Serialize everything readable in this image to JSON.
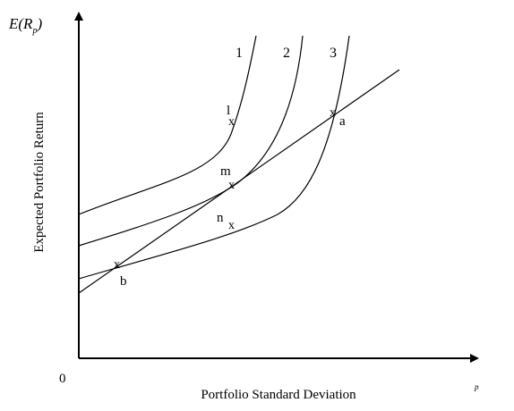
{
  "axes": {
    "y_label": "Expected Portfolio Return",
    "y_symbol_main": "E(R",
    "y_symbol_sub": "p",
    "y_symbol_close": ")",
    "x_label": "Portfolio Standard Deviation",
    "x_symbol": "p",
    "origin": "0"
  },
  "curves": {
    "c1": "1",
    "c2": "2",
    "c3": "3"
  },
  "points": {
    "l": "l",
    "m": "m",
    "n": "n",
    "a": "a",
    "b": "b",
    "cross": "x"
  },
  "style": {
    "line_color": "#000000",
    "background": "#ffffff"
  }
}
